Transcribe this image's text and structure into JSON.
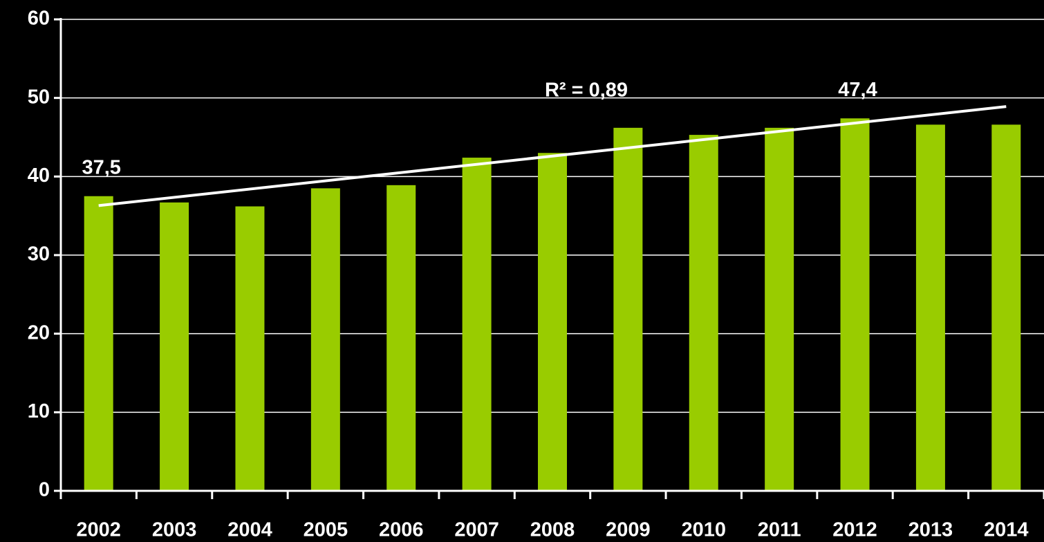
{
  "chart_data": {
    "type": "bar",
    "categories": [
      "2002",
      "2003",
      "2004",
      "2005",
      "2006",
      "2007",
      "2008",
      "2009",
      "2010",
      "2011",
      "2012",
      "2013",
      "2014"
    ],
    "values": [
      37.5,
      36.7,
      36.2,
      38.5,
      38.9,
      42.4,
      43.0,
      46.2,
      45.3,
      46.2,
      47.4,
      46.6,
      46.6
    ],
    "value_labels": [
      "37,5",
      null,
      null,
      null,
      null,
      null,
      null,
      null,
      null,
      null,
      "47,4",
      null,
      null
    ],
    "color": "#99cc00",
    "trendline": {
      "values": [
        36.3,
        48.9
      ],
      "color": "#ffffff",
      "annotation": "R² = 0,89"
    },
    "ylim": [
      0,
      60
    ],
    "yticks": [
      0,
      10,
      20,
      30,
      40,
      50,
      60
    ],
    "grid": true
  }
}
